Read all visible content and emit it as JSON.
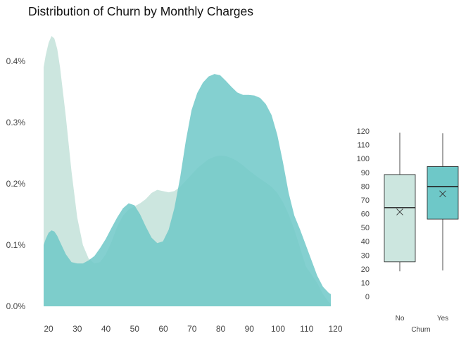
{
  "title": "Distribution of Churn by Monthly Charges",
  "colors": {
    "No": "#cce6df",
    "Yes": "#6ec8c8",
    "box_line": "#222222"
  },
  "chart_data": [
    {
      "type": "area",
      "title": "Distribution of Churn by Monthly Charges",
      "xlabel": "",
      "ylabel": "",
      "xlim": [
        18.25,
        118.75
      ],
      "ylim": [
        0,
        0.0044
      ],
      "x_ticks": [
        20,
        30,
        40,
        50,
        60,
        70,
        80,
        90,
        100,
        110,
        120
      ],
      "y_ticks": [
        {
          "value": 0,
          "label": "0.0%"
        },
        {
          "value": 0.001,
          "label": "0.1%"
        },
        {
          "value": 0.002,
          "label": "0.2%"
        },
        {
          "value": 0.003,
          "label": "0.3%"
        },
        {
          "value": 0.004,
          "label": "0.4%"
        }
      ],
      "grid": false,
      "series": [
        {
          "name": "No",
          "x": [
            18.25,
            19,
            20,
            21,
            22,
            23,
            24,
            26,
            28,
            30,
            32,
            34,
            36,
            38,
            40,
            42,
            44,
            46,
            48,
            50,
            52,
            54,
            56,
            58,
            60,
            62,
            64,
            66,
            68,
            70,
            72,
            74,
            76,
            78,
            80,
            82,
            84,
            86,
            88,
            90,
            92,
            94,
            96,
            98,
            100,
            102,
            104,
            106,
            108,
            110,
            112,
            114,
            116,
            118,
            118.75
          ],
          "y": [
            0.0039,
            0.0041,
            0.0043,
            0.00441,
            0.00437,
            0.0042,
            0.0039,
            0.0031,
            0.0022,
            0.00145,
            0.001,
            0.00078,
            0.0007,
            0.00072,
            0.00085,
            0.00105,
            0.0013,
            0.00148,
            0.00158,
            0.00163,
            0.00168,
            0.00175,
            0.00185,
            0.0019,
            0.00188,
            0.00186,
            0.00188,
            0.00195,
            0.00205,
            0.00215,
            0.00225,
            0.00233,
            0.0024,
            0.00244,
            0.00246,
            0.00245,
            0.00242,
            0.00237,
            0.0023,
            0.00222,
            0.00215,
            0.00208,
            0.00202,
            0.00195,
            0.00185,
            0.0017,
            0.0015,
            0.00125,
            0.00095,
            0.00065,
            0.00052,
            0.00038,
            0.0002,
            7e-05,
            4e-05
          ]
        },
        {
          "name": "Yes",
          "x": [
            18.25,
            19,
            20,
            21,
            22,
            23,
            24,
            26,
            28,
            30,
            32,
            34,
            36,
            38,
            40,
            42,
            44,
            46,
            48,
            50,
            52,
            54,
            56,
            58,
            60,
            62,
            64,
            66,
            68,
            70,
            72,
            74,
            76,
            78,
            80,
            82,
            84,
            86,
            88,
            90,
            92,
            94,
            96,
            98,
            100,
            102,
            104,
            106,
            108,
            110,
            112,
            114,
            116,
            118,
            118.75
          ],
          "y": [
            0.001,
            0.0011,
            0.0012,
            0.00124,
            0.00122,
            0.00115,
            0.00105,
            0.00085,
            0.00072,
            0.0007,
            0.0007,
            0.00075,
            0.00082,
            0.00095,
            0.0011,
            0.00128,
            0.00145,
            0.0016,
            0.00168,
            0.00165,
            0.0015,
            0.0013,
            0.00112,
            0.00103,
            0.00106,
            0.00125,
            0.0016,
            0.0021,
            0.0027,
            0.0032,
            0.00348,
            0.00365,
            0.00375,
            0.00379,
            0.00377,
            0.00368,
            0.00358,
            0.00349,
            0.00345,
            0.00345,
            0.00344,
            0.0034,
            0.0033,
            0.00312,
            0.0028,
            0.00235,
            0.00185,
            0.00148,
            0.00125,
            0.001,
            0.00075,
            0.0005,
            0.00032,
            0.00022,
            0.0002
          ]
        }
      ]
    },
    {
      "type": "box",
      "xlabel": "Churn",
      "ylabel": "",
      "categories": [
        "No",
        "Yes"
      ],
      "ylim": [
        0,
        120
      ],
      "y_ticks": [
        0,
        10,
        20,
        30,
        40,
        50,
        60,
        70,
        80,
        90,
        100,
        110,
        120
      ],
      "series": [
        {
          "name": "No",
          "min": 18.25,
          "q1": 25.1,
          "median": 64.4,
          "q3": 88.4,
          "max": 118.75,
          "mean": 61.3
        },
        {
          "name": "Yes",
          "min": 18.85,
          "q1": 56.1,
          "median": 79.7,
          "q3": 94.2,
          "max": 118.35,
          "mean": 74.4
        }
      ]
    }
  ]
}
